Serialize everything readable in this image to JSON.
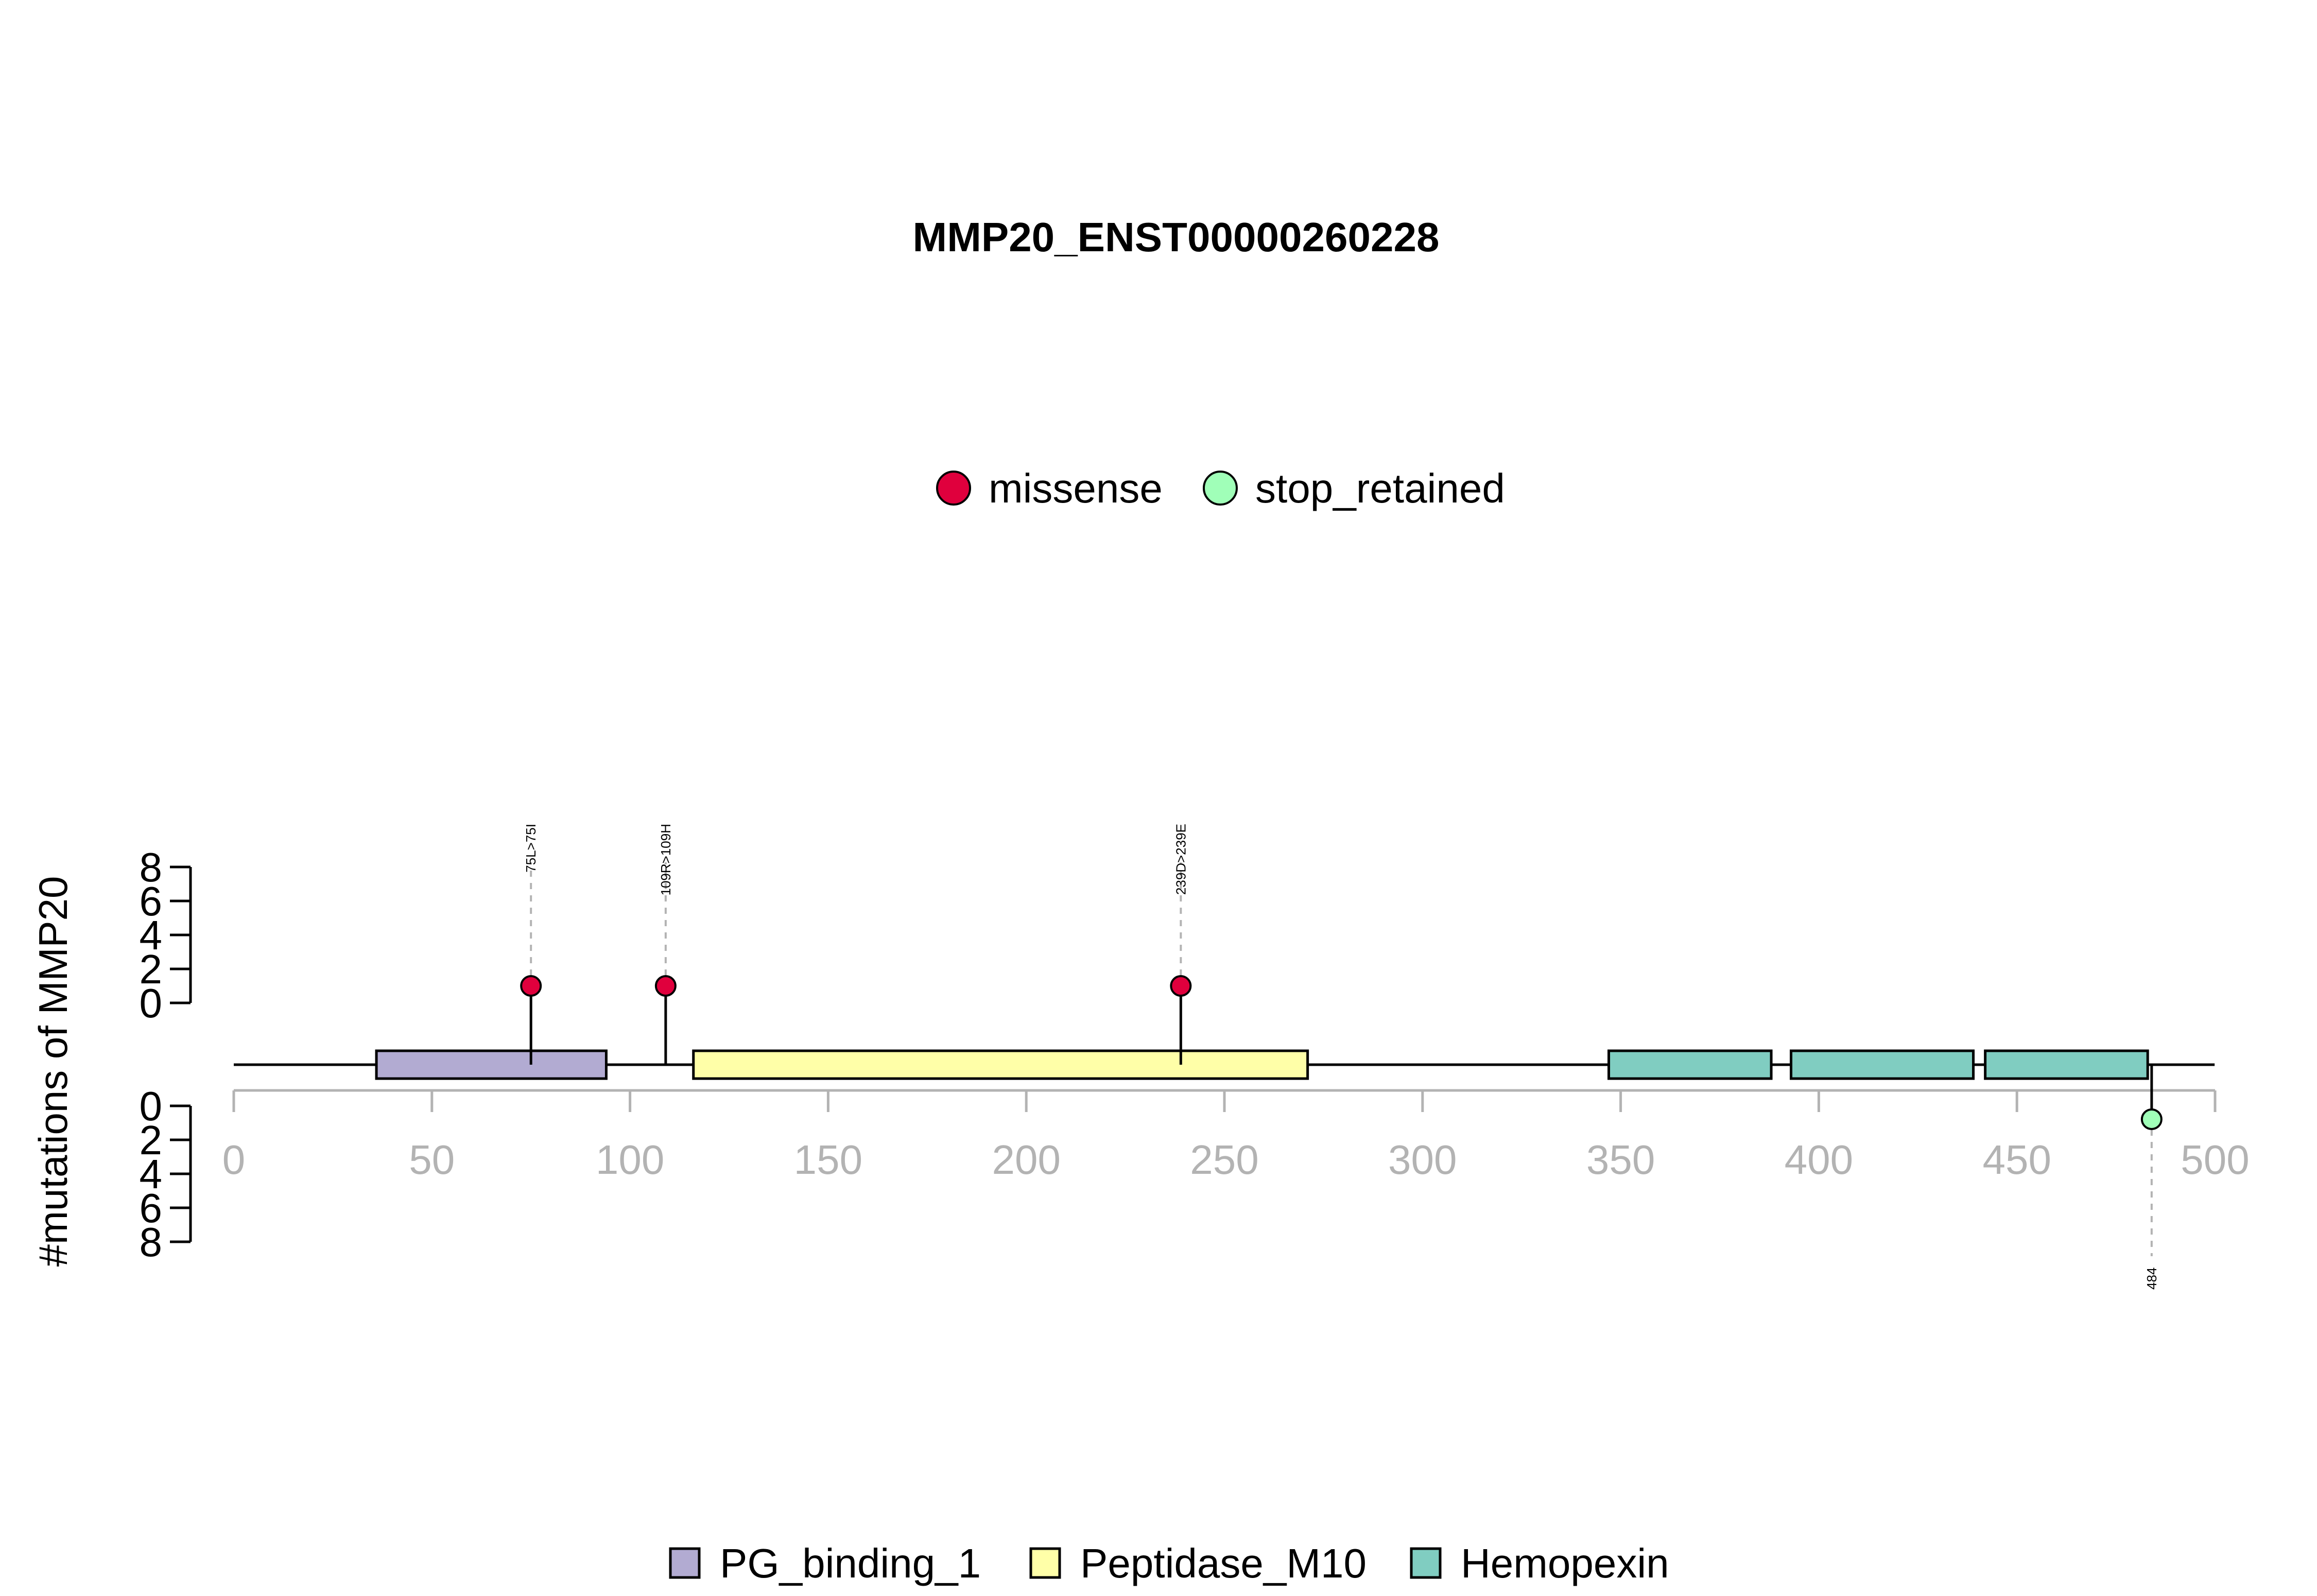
{
  "chart_data": {
    "type": "lollipop",
    "title": "MMP20_ENST00000260228",
    "ylabel": "#mutations of MMP20",
    "xlim": [
      0,
      500
    ],
    "x_ticks": [
      "0",
      "50",
      "100",
      "150",
      "200",
      "250",
      "300",
      "350",
      "400",
      "450",
      "500"
    ],
    "y_ticks": [
      "0",
      "2",
      "4",
      "6",
      "8"
    ],
    "ylim": [
      0,
      8
    ],
    "protein_length": 483,
    "legend_mutation_types": [
      {
        "name": "missense",
        "color": "#e0003d"
      },
      {
        "name": "stop_retained",
        "color": "#a0ffb8"
      }
    ],
    "domains": [
      {
        "name": "PG_binding_1",
        "start": 36,
        "end": 94,
        "color": "#b2abd2"
      },
      {
        "name": "Peptidase_M10",
        "start": 116,
        "end": 271,
        "color": "#ffffa8"
      },
      {
        "name": "Hemopexin",
        "start": 347,
        "end": 388,
        "color": "#80cdc1"
      },
      {
        "name": "Hemopexin",
        "start": 393,
        "end": 439,
        "color": "#80cdc1"
      },
      {
        "name": "Hemopexin",
        "start": 442,
        "end": 483,
        "color": "#80cdc1"
      }
    ],
    "legend_domains": [
      {
        "name": "PG_binding_1",
        "color": "#b2abd2"
      },
      {
        "name": "Peptidase_M10",
        "color": "#ffffa8"
      },
      {
        "name": "Hemopexin",
        "color": "#80cdc1"
      }
    ],
    "mutations": [
      {
        "position": 75,
        "count": 1,
        "label": "75L>75I",
        "type": "missense",
        "side": "top"
      },
      {
        "position": 109,
        "count": 1,
        "label": "109R>109H",
        "type": "missense",
        "side": "top"
      },
      {
        "position": 239,
        "count": 1,
        "label": "239D>239E",
        "type": "missense",
        "side": "top"
      },
      {
        "position": 484,
        "count": 1,
        "label": "484",
        "type": "stop_retained",
        "side": "bottom"
      }
    ]
  }
}
